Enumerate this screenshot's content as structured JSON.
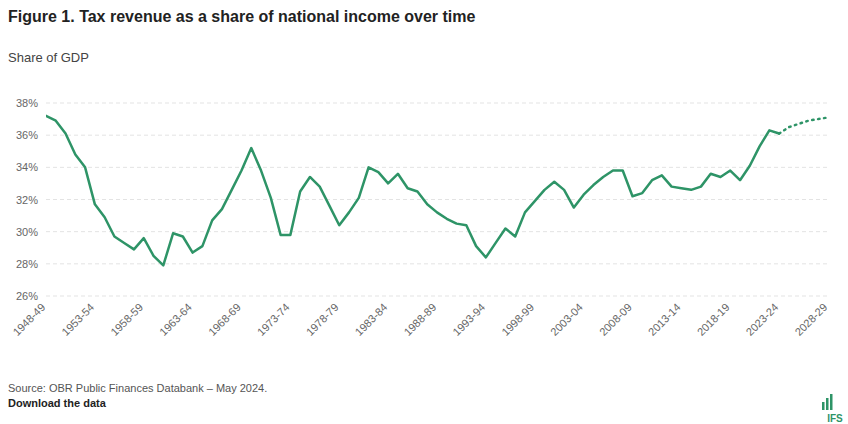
{
  "chart_data": {
    "type": "line",
    "title": "Figure 1. Tax revenue as a share of national income over time",
    "subtitle": "Share of GDP",
    "source": "Source: OBR Public Finances Databank – May 2024.",
    "download_link": "Download the data",
    "logo": "IFS",
    "categories": [
      "1948-49",
      null,
      null,
      null,
      null,
      "1953-54",
      null,
      null,
      null,
      null,
      "1958-59",
      null,
      null,
      null,
      null,
      "1963-64",
      null,
      null,
      null,
      null,
      "1968-69",
      null,
      null,
      null,
      null,
      "1973-74",
      null,
      null,
      null,
      null,
      "1978-79",
      null,
      null,
      null,
      null,
      "1983-84",
      null,
      null,
      null,
      null,
      "1988-89",
      null,
      null,
      null,
      null,
      "1993-94",
      null,
      null,
      null,
      null,
      "1998-99",
      null,
      null,
      null,
      null,
      "2003-04",
      null,
      null,
      null,
      null,
      "2008-09",
      null,
      null,
      null,
      null,
      "2013-14",
      null,
      null,
      null,
      null,
      "2018-19",
      null,
      null,
      null,
      null,
      "2023-24",
      null,
      null,
      null,
      null,
      "2028-29"
    ],
    "series": [
      {
        "color": "#2e9467",
        "line_style": "solid",
        "values": [
          37.2,
          36.9,
          36.1,
          34.8,
          34.0,
          31.7,
          30.9,
          29.7,
          29.3,
          28.9,
          29.6,
          28.5,
          27.9,
          29.9,
          29.7,
          28.7,
          29.1,
          30.7,
          31.4,
          32.6,
          33.8,
          35.2,
          33.8,
          32.1,
          29.8,
          29.8,
          32.5,
          33.4,
          32.8,
          31.6,
          30.4,
          31.2,
          32.1,
          34.0,
          33.7,
          33.0,
          33.6,
          32.7,
          32.5,
          31.7,
          31.2,
          30.8,
          30.5,
          30.4,
          29.1,
          28.4,
          29.3,
          30.2,
          29.7,
          31.2,
          31.9,
          32.6,
          33.1,
          32.6,
          31.5,
          32.3,
          32.9,
          33.4,
          33.8,
          33.8,
          32.2,
          32.4,
          33.2,
          33.5,
          32.8,
          32.7,
          32.6,
          32.8,
          33.6,
          33.4,
          33.8,
          33.2,
          34.1,
          35.3,
          36.3,
          36.1,
          null,
          null,
          null,
          null,
          null
        ]
      },
      {
        "color": "#2e9467",
        "line_style": "dotted",
        "values": [
          null,
          null,
          null,
          null,
          null,
          null,
          null,
          null,
          null,
          null,
          null,
          null,
          null,
          null,
          null,
          null,
          null,
          null,
          null,
          null,
          null,
          null,
          null,
          null,
          null,
          null,
          null,
          null,
          null,
          null,
          null,
          null,
          null,
          null,
          null,
          null,
          null,
          null,
          null,
          null,
          null,
          null,
          null,
          null,
          null,
          null,
          null,
          null,
          null,
          null,
          null,
          null,
          null,
          null,
          null,
          null,
          null,
          null,
          null,
          null,
          null,
          null,
          null,
          null,
          null,
          null,
          null,
          null,
          null,
          null,
          null,
          null,
          null,
          null,
          null,
          36.1,
          36.5,
          36.7,
          36.9,
          37.0,
          37.1
        ]
      }
    ],
    "ylim": [
      26,
      38
    ],
    "yticks": [
      {
        "value": 26,
        "label": "26%"
      },
      {
        "value": 28,
        "label": "28%"
      },
      {
        "value": 30,
        "label": "30%"
      },
      {
        "value": 32,
        "label": "32%"
      },
      {
        "value": 34,
        "label": "34%"
      },
      {
        "value": 36,
        "label": "36%"
      },
      {
        "value": 38,
        "label": "38%"
      }
    ],
    "grid": true
  }
}
